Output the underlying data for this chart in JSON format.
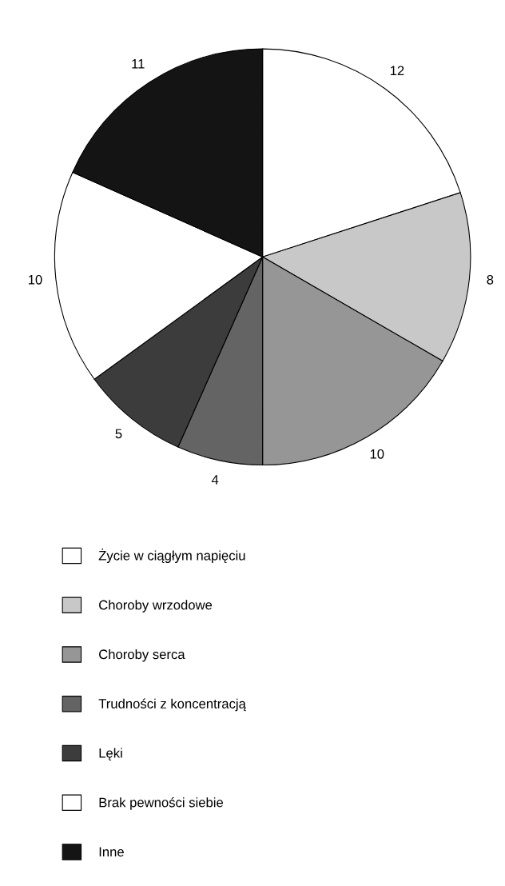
{
  "chart_data": {
    "type": "pie",
    "categories": [
      "Życie w ciągłym napięciu",
      "Choroby wrzodowe",
      "Choroby serca",
      "Trudności z koncentracją",
      "Lęki",
      "Brak pewności siebie",
      "Inne"
    ],
    "values": [
      12,
      8,
      10,
      4,
      5,
      10,
      11
    ],
    "colors": [
      "#ffffff",
      "#c8c8c8",
      "#969696",
      "#646464",
      "#3c3c3c",
      "#ffffff",
      "#141414"
    ],
    "data_labels": true,
    "legend": "bottom"
  }
}
